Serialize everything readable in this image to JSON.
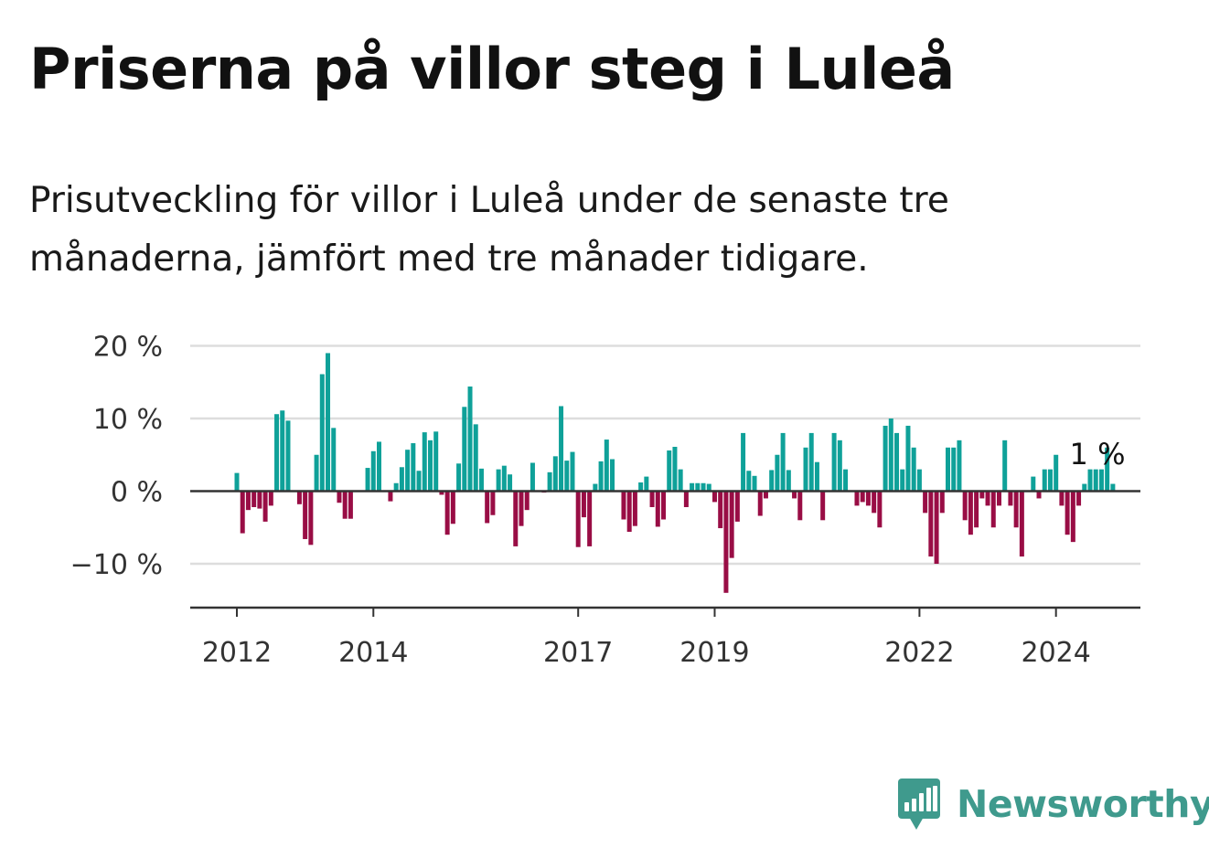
{
  "title": "Priserna på villor steg i Luleå",
  "subtitle": "Prisutveckling för villor i Luleå under de senaste tre månaderna, jämfört med tre månader tidigare.",
  "brand": {
    "name": "Newsworthy",
    "icon": "newsworthy-logo-icon"
  },
  "colors": {
    "positive": "#0fa199",
    "negative": "#990d45",
    "grid": "#dddddd",
    "axis": "#333333",
    "brand": "#3f9a8d"
  },
  "chart_data": {
    "type": "bar",
    "title": "Priserna på villor steg i Luleå",
    "xlabel": "",
    "ylabel": "",
    "ylim": [
      -16,
      20
    ],
    "y_ticks": [
      20,
      10,
      0,
      -10
    ],
    "y_tick_labels": [
      "20 %",
      "10 %",
      "0 %",
      "−10 %"
    ],
    "x_ticks": [
      {
        "label": "2012",
        "month_index": 0
      },
      {
        "label": "2014",
        "month_index": 24
      },
      {
        "label": "2017",
        "month_index": 60
      },
      {
        "label": "2019",
        "month_index": 84
      },
      {
        "label": "2022",
        "month_index": 120
      },
      {
        "label": "2024",
        "month_index": 144
      }
    ],
    "start": "2012-01",
    "values": [
      2.5,
      -5.8,
      -2.6,
      -2.2,
      -2.4,
      -4.2,
      -2.0,
      10.6,
      11.1,
      9.7,
      0,
      -1.8,
      -6.6,
      -7.4,
      5.0,
      16.1,
      19.0,
      8.7,
      -1.6,
      -3.8,
      -3.8,
      0,
      0,
      3.2,
      5.5,
      6.8,
      0,
      -1.4,
      1.1,
      3.3,
      5.7,
      6.6,
      2.8,
      8.1,
      7.0,
      8.2,
      -0.5,
      -6.0,
      -4.5,
      3.8,
      11.6,
      14.4,
      9.2,
      3.1,
      -4.4,
      -3.3,
      3.0,
      3.5,
      2.3,
      -7.6,
      -4.8,
      -2.6,
      3.9,
      0,
      -0.2,
      2.6,
      4.8,
      11.7,
      4.2,
      5.4,
      -7.7,
      -3.6,
      -7.6,
      1.0,
      4.1,
      7.1,
      4.4,
      0,
      -3.9,
      -5.6,
      -4.8,
      1.2,
      2.0,
      -2.2,
      -4.9,
      -3.9,
      5.6,
      6.1,
      3.0,
      -2.2,
      1.1,
      1.1,
      1.1,
      1.0,
      -1.5,
      -5.1,
      -14.0,
      -9.2,
      -4.2,
      8.0,
      2.8,
      2.1,
      -3.4,
      -1.0,
      2.9,
      5.0,
      8.0,
      2.9,
      -1.0,
      -4.0,
      6.0,
      8.0,
      4.0,
      -4.0,
      0,
      8.0,
      7.0,
      3.0,
      0,
      -2.0,
      -1.5,
      -2.0,
      -3.0,
      -5.0,
      9.0,
      10.0,
      8.0,
      3.0,
      9.0,
      6.0,
      3.0,
      -3.0,
      -9.0,
      -10.0,
      -3.0,
      6.0,
      6.0,
      7.0,
      -4.0,
      -6.0,
      -5.0,
      -1.0,
      -2.0,
      -5.0,
      -2.0,
      7.0,
      -2.0,
      -5.0,
      -9.0,
      0,
      2.0,
      -1.0,
      3.0,
      3.0,
      5.0,
      -2.0,
      -6.0,
      -7.0,
      -2.0,
      1.0,
      3.0,
      3.0,
      3.0,
      6.0,
      1.0
    ],
    "annotations": [
      {
        "text": "1 %",
        "month_index": 150
      }
    ]
  }
}
